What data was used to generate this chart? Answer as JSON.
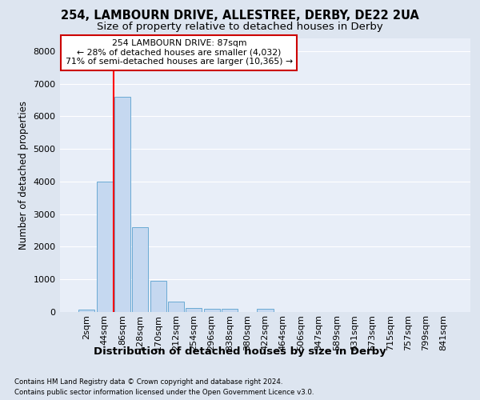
{
  "title1": "254, LAMBOURN DRIVE, ALLESTREE, DERBY, DE22 2UA",
  "title2": "Size of property relative to detached houses in Derby",
  "xlabel": "Distribution of detached houses by size in Derby",
  "ylabel": "Number of detached properties",
  "footnote1": "Contains HM Land Registry data © Crown copyright and database right 2024.",
  "footnote2": "Contains public sector information licensed under the Open Government Licence v3.0.",
  "annotation_line1": "254 LAMBOURN DRIVE: 87sqm",
  "annotation_line2": "← 28% of detached houses are smaller (4,032)",
  "annotation_line3": "71% of semi-detached houses are larger (10,365) →",
  "bar_labels": [
    "2sqm",
    "44sqm",
    "86sqm",
    "128sqm",
    "170sqm",
    "212sqm",
    "254sqm",
    "296sqm",
    "338sqm",
    "380sqm",
    "422sqm",
    "464sqm",
    "506sqm",
    "547sqm",
    "589sqm",
    "631sqm",
    "673sqm",
    "715sqm",
    "757sqm",
    "799sqm",
    "841sqm"
  ],
  "bar_values": [
    75,
    4000,
    6600,
    2600,
    950,
    320,
    130,
    110,
    95,
    0,
    95,
    0,
    0,
    0,
    0,
    0,
    0,
    0,
    0,
    0,
    0
  ],
  "bar_color": "#c5d8f0",
  "bar_edge_color": "#6aaad4",
  "red_line_x": 1.5,
  "ylim": [
    0,
    8400
  ],
  "yticks": [
    0,
    1000,
    2000,
    3000,
    4000,
    5000,
    6000,
    7000,
    8000
  ],
  "bg_color": "#dde5f0",
  "plot_bg_color": "#e8eef8",
  "title1_fontsize": 10.5,
  "title2_fontsize": 9.5,
  "xlabel_fontsize": 9.5,
  "ylabel_fontsize": 8.5,
  "annotation_box_color": "#ffffff",
  "annotation_box_edge": "#cc0000",
  "grid_color": "#ffffff",
  "tick_fontsize": 8
}
